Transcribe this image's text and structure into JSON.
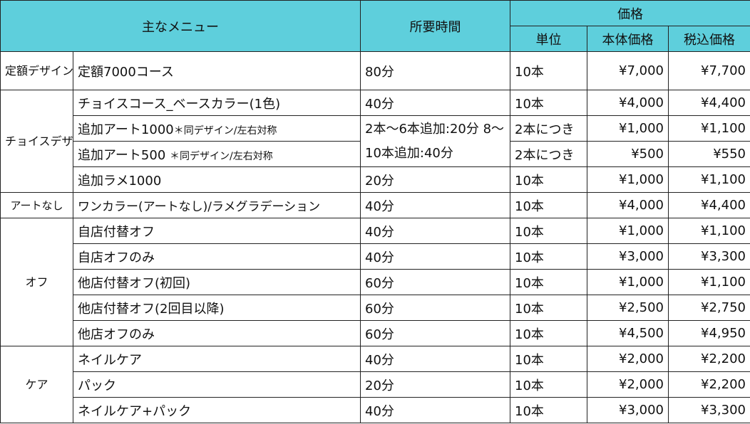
{
  "header": {
    "menu": "主なメニュー",
    "time": "所要時間",
    "price": "価格",
    "unit": "単位",
    "base_price": "本体価格",
    "tax_price": "税込価格"
  },
  "groups": {
    "fixed": {
      "category": "定額デザイン",
      "rows": [
        {
          "item": "定額7000コース",
          "time": "80分",
          "unit": "10本",
          "base": "¥7,000",
          "tax": "¥7,700"
        }
      ]
    },
    "choice": {
      "category": "チョイスデザイン",
      "rows": [
        {
          "item": "チョイスコース_ベースカラー(1色)",
          "time": "40分",
          "unit": "10本",
          "base": "¥4,000",
          "tax": "¥4,400"
        },
        {
          "item": "追加アート1000",
          "note": "＊同デザイン/左右対称",
          "unit": "2本につき",
          "base": "¥1,000",
          "tax": "¥1,100"
        },
        {
          "item": "追加アート500",
          "note": "＊同デザイン/左右対称",
          "unit": "2本につき",
          "base": "¥500",
          "tax": "¥550"
        },
        {
          "item": "追加ラメ1000",
          "time": "20分",
          "unit": "10本",
          "base": "¥1,000",
          "tax": "¥1,100"
        }
      ],
      "art_time": "2本～6本追加:20分 8～10本追加:40分"
    },
    "noart": {
      "category": "アートなし",
      "rows": [
        {
          "item": "ワンカラー(アートなし)/ラメグラデーション",
          "time": "40分",
          "unit": "10本",
          "base": "¥4,000",
          "tax": "¥4,400"
        }
      ]
    },
    "off": {
      "category": "オフ",
      "rows": [
        {
          "item": "自店付替オフ",
          "time": "40分",
          "unit": "10本",
          "base": "¥1,000",
          "tax": "¥1,100"
        },
        {
          "item": "自店オフのみ",
          "time": "40分",
          "unit": "10本",
          "base": "¥3,000",
          "tax": "¥3,300"
        },
        {
          "item": "他店付替オフ(初回)",
          "time": "60分",
          "unit": "10本",
          "base": "¥1,000",
          "tax": "¥1,100"
        },
        {
          "item": "他店付替オフ(2回目以降)",
          "time": "60分",
          "unit": "10本",
          "base": "¥2,500",
          "tax": "¥2,750"
        },
        {
          "item": "他店オフのみ",
          "time": "60分",
          "unit": "10本",
          "base": "¥4,500",
          "tax": "¥4,950"
        }
      ]
    },
    "care": {
      "category": "ケア",
      "rows": [
        {
          "item": "ネイルケア",
          "time": "40分",
          "unit": "10本",
          "base": "¥2,000",
          "tax": "¥2,200"
        },
        {
          "item": "パック",
          "time": "20分",
          "unit": "10本",
          "base": "¥2,000",
          "tax": "¥2,200"
        },
        {
          "item": "ネイルケア+パック",
          "time": "40分",
          "unit": "10本",
          "base": "¥3,000",
          "tax": "¥3,300"
        }
      ]
    }
  }
}
